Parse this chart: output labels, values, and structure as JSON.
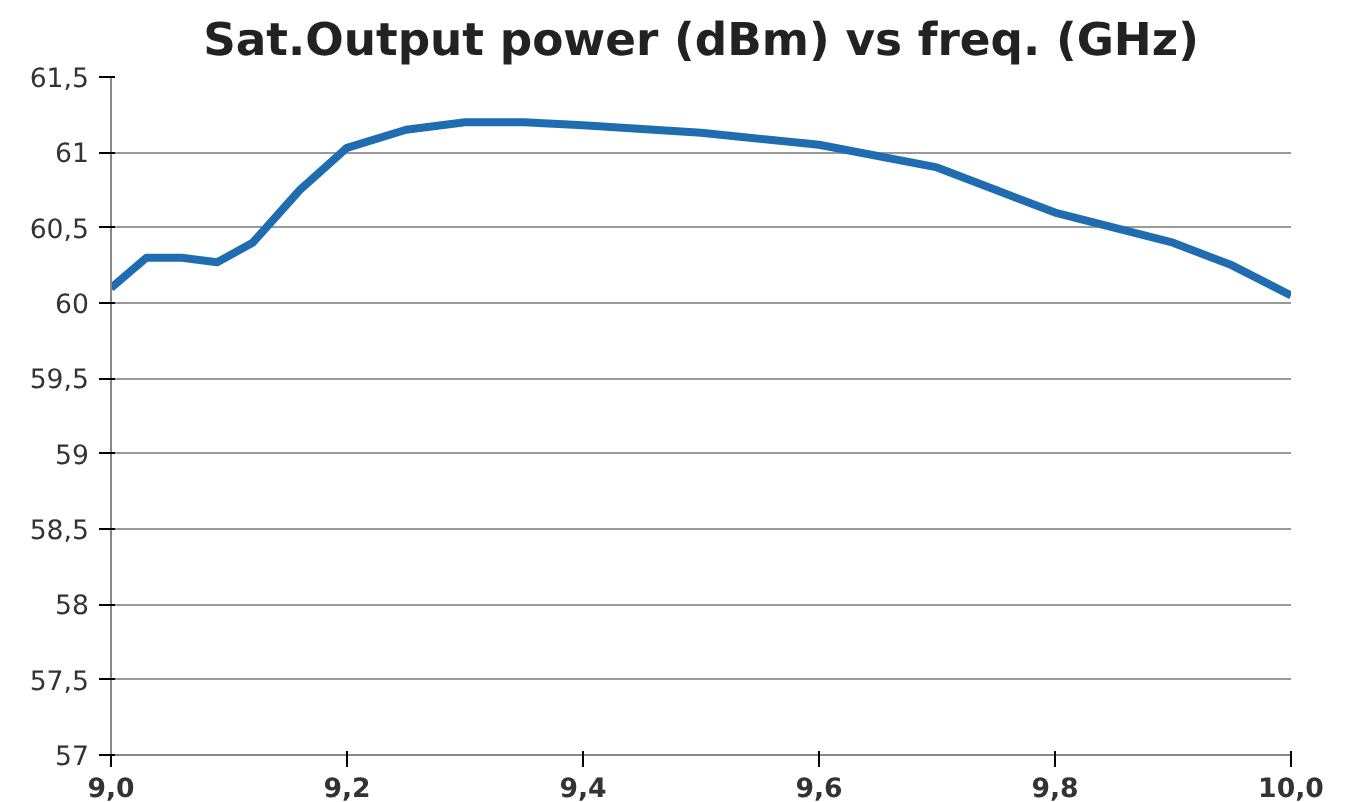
{
  "chart_data": {
    "type": "line",
    "title": "Sat.Output power (dBm) vs freq. (GHz)",
    "x": [
      9.0,
      9.03,
      9.06,
      9.09,
      9.12,
      9.16,
      9.2,
      9.25,
      9.3,
      9.35,
      9.4,
      9.5,
      9.6,
      9.7,
      9.75,
      9.8,
      9.85,
      9.9,
      9.95,
      10.0
    ],
    "series": [
      {
        "color": "#1f6cb0",
        "values": [
          60.1,
          60.3,
          60.3,
          60.27,
          60.4,
          60.75,
          61.03,
          61.15,
          61.2,
          61.2,
          61.18,
          61.13,
          61.05,
          60.9,
          60.75,
          60.6,
          60.5,
          60.4,
          60.25,
          60.05
        ]
      }
    ],
    "xlim": [
      9.0,
      10.0
    ],
    "xticks": [
      {
        "value": 9.0,
        "label": "9,0"
      },
      {
        "value": 9.2,
        "label": "9,2"
      },
      {
        "value": 9.4,
        "label": "9,4"
      },
      {
        "value": 9.6,
        "label": "9,6"
      },
      {
        "value": 9.8,
        "label": "9,8"
      },
      {
        "value": 10.0,
        "label": "10,0"
      }
    ],
    "ylim": [
      57,
      61.5
    ],
    "yticks": [
      57,
      {
        "value": 57.5,
        "label": "57,5"
      },
      58,
      {
        "value": 58.5,
        "label": "58,5"
      },
      59,
      {
        "value": 59.5,
        "label": "59,5"
      },
      60,
      {
        "value": 60.5,
        "label": "60,5"
      },
      61,
      {
        "value": 61.5,
        "label": "61,5"
      }
    ],
    "grid": "y",
    "marker": "none",
    "line_style": "solid"
  }
}
